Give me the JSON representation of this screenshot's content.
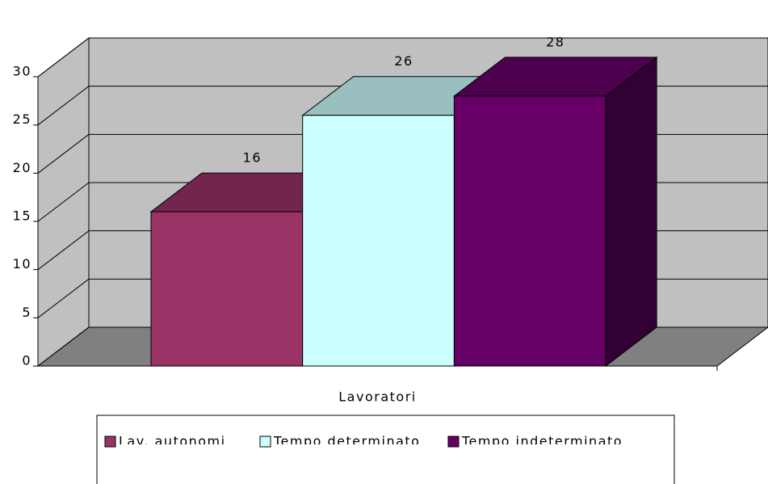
{
  "chart_data": {
    "type": "bar3d",
    "categories": [
      "Lavoratori"
    ],
    "series": [
      {
        "name": "Lav. autonomi",
        "color": "#993366",
        "values": [
          16
        ]
      },
      {
        "name": "Tempo determinato",
        "color": "#ccffff",
        "values": [
          26
        ]
      },
      {
        "name": "Tempo indeterminato",
        "color": "#660066",
        "values": [
          28
        ]
      }
    ],
    "ylim": [
      0,
      30
    ],
    "yticks": [
      0,
      5,
      10,
      15,
      20,
      25,
      30
    ],
    "grid": true,
    "legend": "bottom"
  }
}
